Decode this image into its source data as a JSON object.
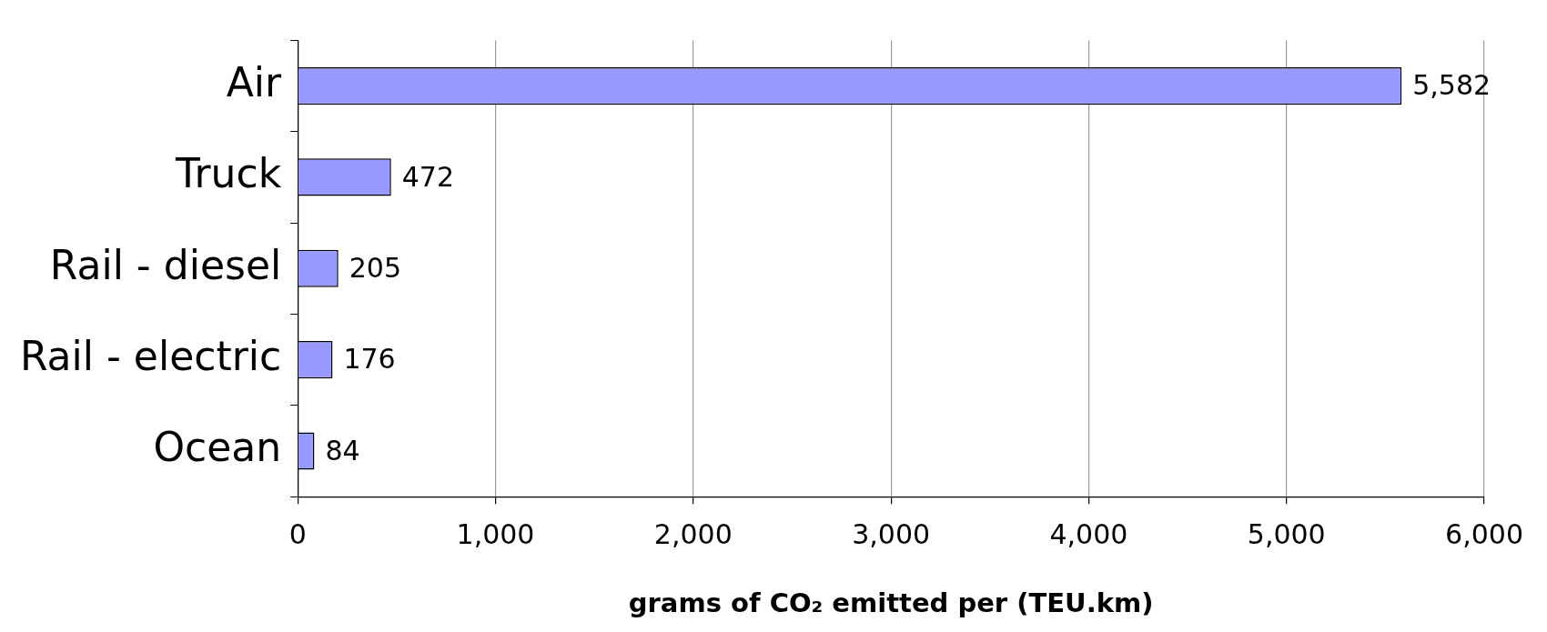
{
  "chart_data": {
    "type": "bar",
    "orientation": "horizontal",
    "xlabel": "grams of CO₂ emitted per (TEU.km)",
    "categories": [
      "Air",
      "Truck",
      "Rail - diesel",
      "Rail - electric",
      "Ocean"
    ],
    "values": [
      5582,
      472,
      205,
      176,
      84
    ],
    "color": "#9999ff",
    "value_labels": [
      "5,582",
      "472",
      "205",
      "176",
      "84"
    ],
    "xlim": [
      0,
      6000
    ],
    "xticks": [
      0,
      {
        "value": 1000,
        "label": "1,000"
      },
      {
        "value": 2000,
        "label": "2,000"
      },
      {
        "value": 3000,
        "label": "3,000"
      },
      {
        "value": 4000,
        "label": "4,000"
      },
      {
        "value": 5000,
        "label": "5,000"
      },
      {
        "value": 6000,
        "label": "6,000"
      }
    ],
    "grid": "x",
    "legend": false
  }
}
